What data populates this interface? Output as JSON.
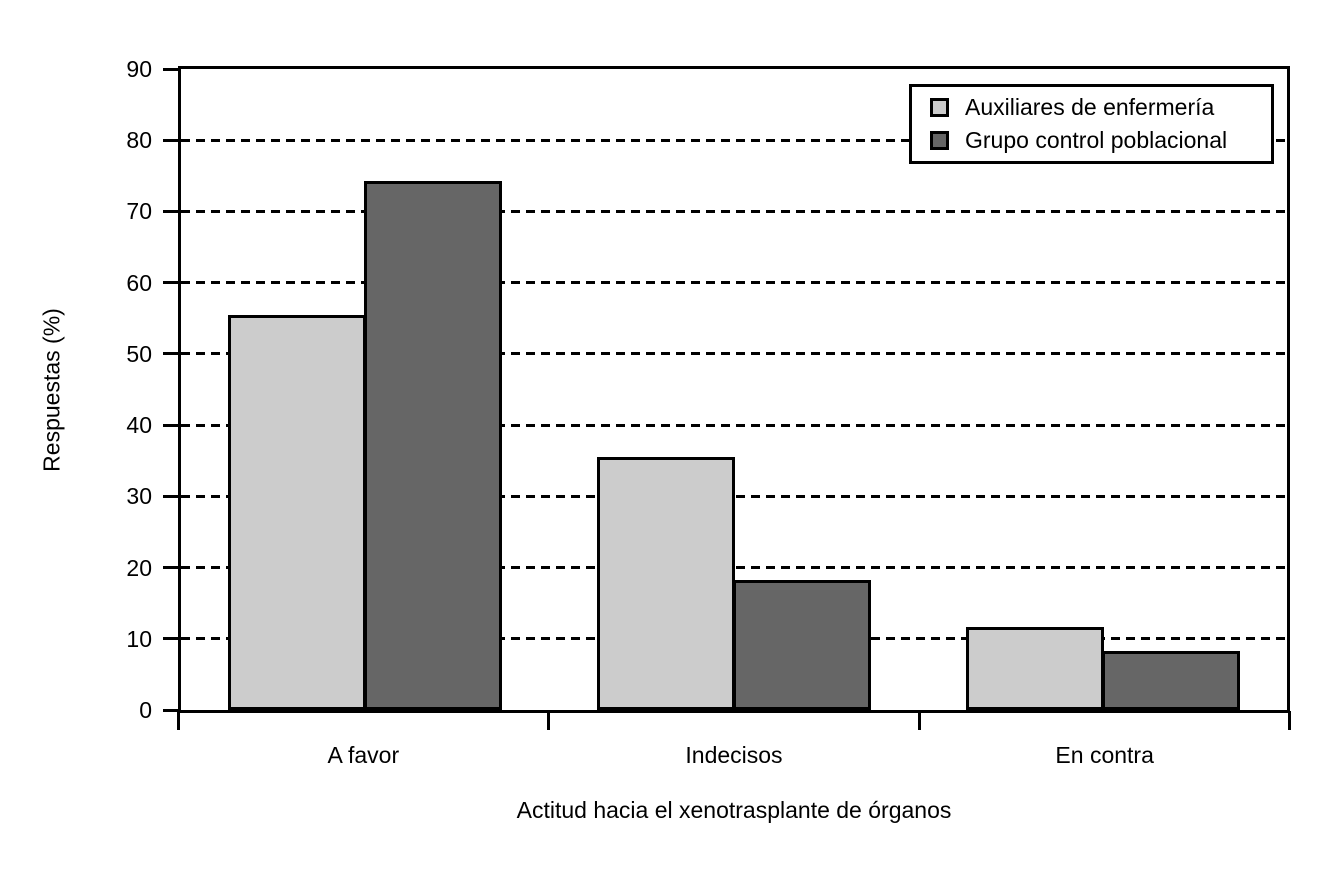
{
  "figure": {
    "background_color": "#ffffff",
    "text_color": "#000000"
  },
  "chart_data": {
    "type": "bar",
    "title": "",
    "xlabel": "Actitud hacia el xenotrasplante de órganos",
    "ylabel": "Respuestas (%)",
    "categories": [
      "A favor",
      "Indecisos",
      "En contra"
    ],
    "series": [
      {
        "name": "Auxiliares de enfermería",
        "color": "#cccccc",
        "values": [
          55.1,
          35.1,
          11.3
        ]
      },
      {
        "name": "Grupo control poblacional",
        "color": "#666666",
        "values": [
          73.8,
          17.8,
          7.8
        ]
      }
    ],
    "ylim": [
      0,
      90
    ],
    "yticks": [
      0,
      10,
      20,
      30,
      40,
      50,
      60,
      70,
      80,
      90
    ],
    "grid": "horizontal-dashed",
    "legend_position": "top-right",
    "bar_border_color": "#000000",
    "axis_color": "#000000"
  }
}
